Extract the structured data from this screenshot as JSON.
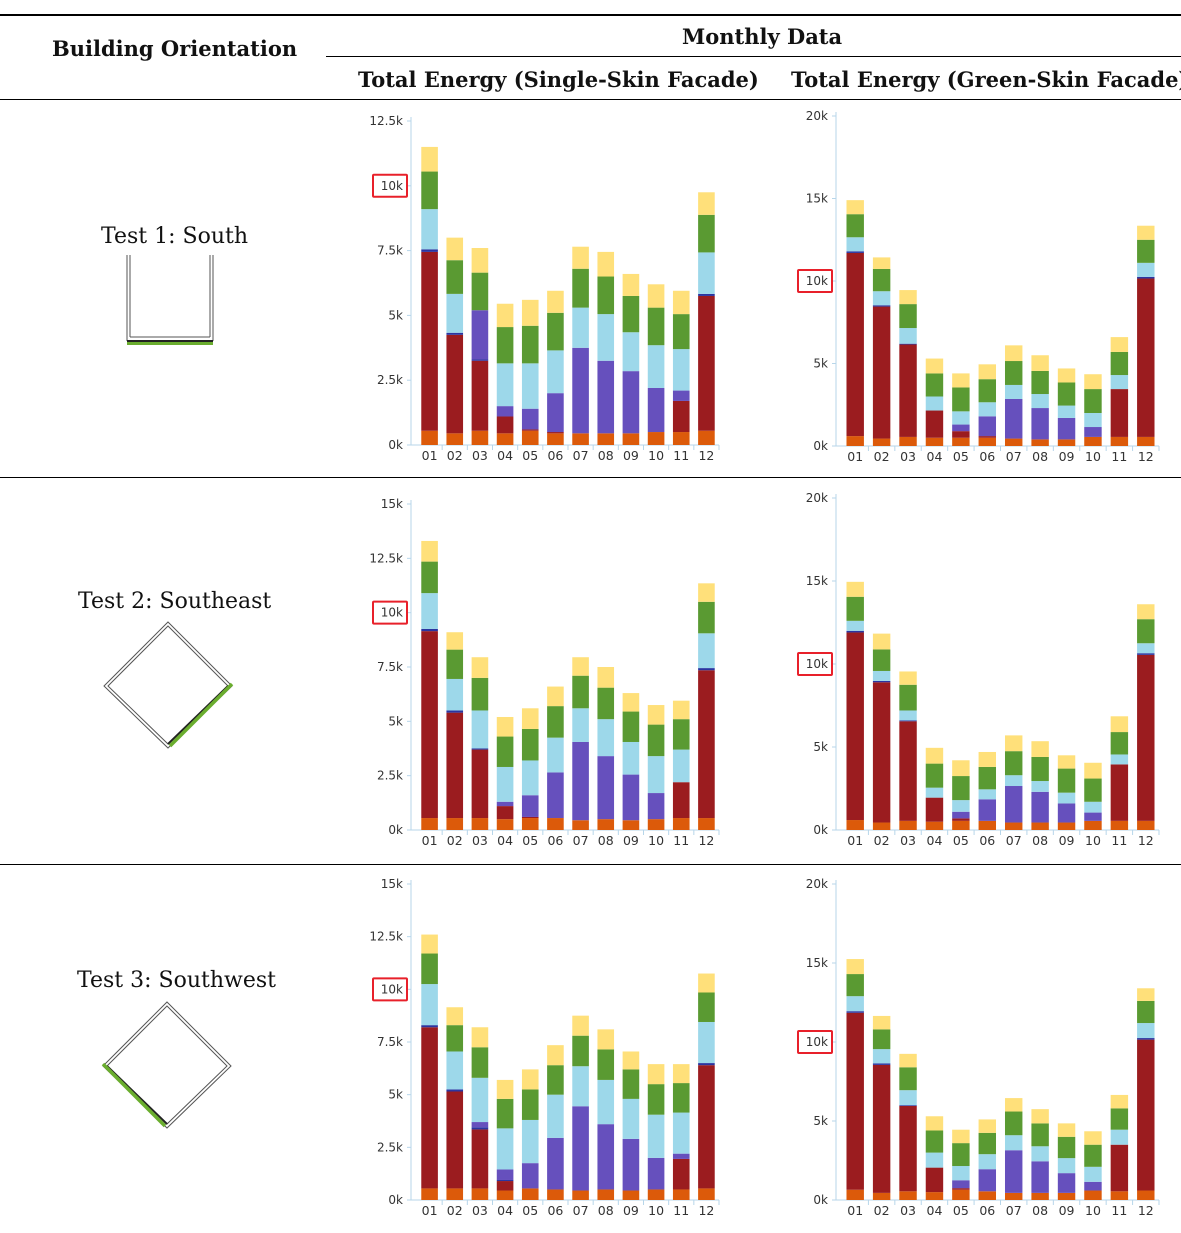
{
  "table": {
    "col_orientation": "Building Orientation",
    "col_group": "Monthly Data",
    "col_single": "Total Energy (Single-Skin Facade)",
    "col_green": "Total Energy (Green-Skin Facade)"
  },
  "rows": [
    {
      "label": "Test 1: South",
      "plan_orientation": "south"
    },
    {
      "label": "Test 2: Southeast",
      "plan_orientation": "southeast"
    },
    {
      "label": "Test 3: Southwest",
      "plan_orientation": "southwest"
    }
  ],
  "colors": {
    "orange": "#dc5a0a",
    "darkred": "#9b1c1f",
    "blue": "#2b35a0",
    "purple": "#6650bd",
    "lightblue": "#9dd8ea",
    "green": "#5a9a32",
    "yellow": "#ffe07a",
    "highlight_box": "#e8202a",
    "axis": "#b7d6ea",
    "plan_green": "#6aad2e"
  },
  "chart_data": [
    {
      "id": "south-single",
      "type": "bar",
      "stacked": true,
      "categories": [
        "01",
        "02",
        "03",
        "04",
        "05",
        "06",
        "07",
        "08",
        "09",
        "10",
        "11",
        "12"
      ],
      "ylim": [
        0,
        12500
      ],
      "yticks": [
        {
          "v": 0,
          "label": "0k"
        },
        {
          "v": 2500,
          "label": "2.5k"
        },
        {
          "v": 5000,
          "label": "5k"
        },
        {
          "v": 7500,
          "label": "7.5k"
        },
        {
          "v": 10000,
          "label": "10k"
        },
        {
          "v": 12500,
          "label": "12.5k"
        }
      ],
      "highlight_tick": "10k",
      "series": [
        {
          "color": "orange",
          "values": [
            550,
            450,
            550,
            450,
            550,
            450,
            450,
            450,
            450,
            500,
            500,
            550
          ]
        },
        {
          "color": "darkred",
          "values": [
            6900,
            3800,
            2700,
            650,
            50,
            50,
            0,
            0,
            0,
            0,
            1200,
            5200
          ]
        },
        {
          "color": "blue",
          "values": [
            100,
            80,
            50,
            0,
            0,
            0,
            0,
            0,
            0,
            0,
            0,
            80
          ]
        },
        {
          "color": "purple",
          "values": [
            0,
            0,
            1900,
            400,
            800,
            1500,
            3300,
            2800,
            2400,
            1700,
            400,
            0
          ]
        },
        {
          "color": "lightblue",
          "values": [
            1550,
            1500,
            0,
            1650,
            1750,
            1650,
            1550,
            1800,
            1500,
            1650,
            1600,
            1600
          ]
        },
        {
          "color": "green",
          "values": [
            1450,
            1300,
            1450,
            1400,
            1450,
            1450,
            1500,
            1450,
            1400,
            1450,
            1350,
            1450
          ]
        },
        {
          "color": "yellow",
          "values": [
            950,
            870,
            950,
            900,
            1000,
            850,
            850,
            950,
            850,
            900,
            900,
            870
          ]
        }
      ]
    },
    {
      "id": "south-green",
      "type": "bar",
      "stacked": true,
      "categories": [
        "01",
        "02",
        "03",
        "04",
        "05",
        "06",
        "07",
        "08",
        "09",
        "10",
        "11",
        "12"
      ],
      "ylim": [
        0,
        20000
      ],
      "yticks": [
        {
          "v": 0,
          "label": "0k"
        },
        {
          "v": 5000,
          "label": "5k"
        },
        {
          "v": 10000,
          "label": "10k"
        },
        {
          "v": 15000,
          "label": "15k"
        },
        {
          "v": 20000,
          "label": "20k"
        }
      ],
      "highlight_tick": "10k",
      "series": [
        {
          "color": "orange",
          "values": [
            600,
            450,
            550,
            500,
            500,
            500,
            450,
            400,
            400,
            550,
            550,
            550
          ]
        },
        {
          "color": "darkred",
          "values": [
            11100,
            8000,
            5600,
            1650,
            400,
            100,
            0,
            0,
            0,
            0,
            2900,
            9600
          ]
        },
        {
          "color": "blue",
          "values": [
            100,
            80,
            50,
            0,
            0,
            0,
            0,
            0,
            0,
            0,
            0,
            100
          ]
        },
        {
          "color": "purple",
          "values": [
            0,
            0,
            0,
            0,
            400,
            1200,
            2400,
            1900,
            1300,
            600,
            0,
            0
          ]
        },
        {
          "color": "lightblue",
          "values": [
            850,
            850,
            950,
            850,
            800,
            850,
            850,
            850,
            750,
            850,
            850,
            850
          ]
        },
        {
          "color": "green",
          "values": [
            1400,
            1350,
            1450,
            1400,
            1450,
            1400,
            1450,
            1400,
            1400,
            1450,
            1400,
            1400
          ]
        },
        {
          "color": "yellow",
          "values": [
            850,
            700,
            850,
            900,
            850,
            900,
            950,
            950,
            850,
            900,
            900,
            850
          ]
        }
      ]
    },
    {
      "id": "southeast-single",
      "type": "bar",
      "stacked": true,
      "categories": [
        "01",
        "02",
        "03",
        "04",
        "05",
        "06",
        "07",
        "08",
        "09",
        "10",
        "11",
        "12"
      ],
      "ylim": [
        0,
        15000
      ],
      "yticks": [
        {
          "v": 0,
          "label": "0k"
        },
        {
          "v": 2500,
          "label": "2.5k"
        },
        {
          "v": 5000,
          "label": "5k"
        },
        {
          "v": 7500,
          "label": "7.5k"
        },
        {
          "v": 10000,
          "label": "10k"
        },
        {
          "v": 12500,
          "label": "12.5k"
        },
        {
          "v": 15000,
          "label": "15k"
        }
      ],
      "highlight_tick": "10k",
      "series": [
        {
          "color": "orange",
          "values": [
            550,
            550,
            550,
            500,
            550,
            550,
            450,
            500,
            450,
            500,
            550,
            550
          ]
        },
        {
          "color": "darkred",
          "values": [
            8600,
            4850,
            3150,
            600,
            50,
            0,
            0,
            0,
            0,
            0,
            1650,
            6800
          ]
        },
        {
          "color": "blue",
          "values": [
            100,
            100,
            50,
            0,
            0,
            0,
            0,
            0,
            0,
            0,
            0,
            100
          ]
        },
        {
          "color": "purple",
          "values": [
            0,
            0,
            0,
            200,
            1000,
            2100,
            3600,
            2900,
            2100,
            1200,
            0,
            0
          ]
        },
        {
          "color": "lightblue",
          "values": [
            1650,
            1450,
            1750,
            1600,
            1600,
            1600,
            1550,
            1700,
            1500,
            1700,
            1500,
            1600
          ]
        },
        {
          "color": "green",
          "values": [
            1450,
            1350,
            1500,
            1400,
            1450,
            1450,
            1500,
            1450,
            1400,
            1450,
            1400,
            1450
          ]
        },
        {
          "color": "yellow",
          "values": [
            950,
            800,
            950,
            900,
            950,
            900,
            850,
            950,
            850,
            900,
            850,
            850
          ]
        }
      ]
    },
    {
      "id": "southeast-green",
      "type": "bar",
      "stacked": true,
      "categories": [
        "01",
        "02",
        "03",
        "04",
        "05",
        "06",
        "07",
        "08",
        "09",
        "10",
        "11",
        "12"
      ],
      "ylim": [
        0,
        20000
      ],
      "yticks": [
        {
          "v": 0,
          "label": "0k"
        },
        {
          "v": 5000,
          "label": "5k"
        },
        {
          "v": 10000,
          "label": "10k"
        },
        {
          "v": 15000,
          "label": "15k"
        },
        {
          "v": 20000,
          "label": "20k"
        }
      ],
      "highlight_tick": "10k",
      "series": [
        {
          "color": "orange",
          "values": [
            600,
            450,
            550,
            500,
            550,
            550,
            450,
            450,
            450,
            550,
            550,
            550
          ]
        },
        {
          "color": "darkred",
          "values": [
            11300,
            8450,
            6000,
            1450,
            150,
            0,
            0,
            0,
            0,
            0,
            3400,
            10000
          ]
        },
        {
          "color": "blue",
          "values": [
            100,
            80,
            50,
            0,
            0,
            0,
            0,
            0,
            0,
            0,
            0,
            100
          ]
        },
        {
          "color": "purple",
          "values": [
            0,
            0,
            0,
            0,
            400,
            1300,
            2200,
            1850,
            1150,
            500,
            0,
            0
          ]
        },
        {
          "color": "lightblue",
          "values": [
            600,
            600,
            600,
            600,
            700,
            600,
            650,
            650,
            650,
            650,
            600,
            600
          ]
        },
        {
          "color": "green",
          "values": [
            1450,
            1300,
            1550,
            1450,
            1450,
            1350,
            1450,
            1450,
            1450,
            1400,
            1350,
            1450
          ]
        },
        {
          "color": "yellow",
          "values": [
            900,
            950,
            800,
            950,
            950,
            900,
            950,
            950,
            800,
            950,
            950,
            900
          ]
        }
      ]
    },
    {
      "id": "southwest-single",
      "type": "bar",
      "stacked": true,
      "categories": [
        "01",
        "02",
        "03",
        "04",
        "05",
        "06",
        "07",
        "08",
        "09",
        "10",
        "11",
        "12"
      ],
      "ylim": [
        0,
        15000
      ],
      "yticks": [
        {
          "v": 0,
          "label": "0k"
        },
        {
          "v": 2500,
          "label": "2.5k"
        },
        {
          "v": 5000,
          "label": "5k"
        },
        {
          "v": 7500,
          "label": "7.5k"
        },
        {
          "v": 10000,
          "label": "10k"
        },
        {
          "v": 12500,
          "label": "12.5k"
        },
        {
          "v": 15000,
          "label": "15k"
        }
      ],
      "highlight_tick": "10k",
      "series": [
        {
          "color": "orange",
          "values": [
            550,
            550,
            550,
            450,
            550,
            500,
            450,
            500,
            450,
            500,
            500,
            550
          ]
        },
        {
          "color": "darkred",
          "values": [
            7650,
            4600,
            2800,
            450,
            0,
            0,
            0,
            0,
            0,
            0,
            1450,
            5850
          ]
        },
        {
          "color": "blue",
          "values": [
            100,
            100,
            100,
            50,
            0,
            0,
            0,
            0,
            0,
            0,
            0,
            100
          ]
        },
        {
          "color": "purple",
          "values": [
            0,
            0,
            250,
            500,
            1200,
            2450,
            4000,
            3100,
            2450,
            1500,
            250,
            0
          ]
        },
        {
          "color": "lightblue",
          "values": [
            1950,
            1800,
            2100,
            1950,
            2050,
            2050,
            1900,
            2100,
            1900,
            2050,
            1950,
            1950
          ]
        },
        {
          "color": "green",
          "values": [
            1450,
            1250,
            1450,
            1400,
            1450,
            1400,
            1450,
            1450,
            1400,
            1450,
            1400,
            1400
          ]
        },
        {
          "color": "yellow",
          "values": [
            900,
            850,
            950,
            900,
            950,
            950,
            950,
            950,
            850,
            950,
            900,
            900
          ]
        }
      ]
    },
    {
      "id": "southwest-green",
      "type": "bar",
      "stacked": true,
      "categories": [
        "01",
        "02",
        "03",
        "04",
        "05",
        "06",
        "07",
        "08",
        "09",
        "10",
        "11",
        "12"
      ],
      "ylim": [
        0,
        20000
      ],
      "yticks": [
        {
          "v": 0,
          "label": "0k"
        },
        {
          "v": 5000,
          "label": "5k"
        },
        {
          "v": 10000,
          "label": "10k"
        },
        {
          "v": 15000,
          "label": "15k"
        },
        {
          "v": 20000,
          "label": "20k"
        }
      ],
      "highlight_tick": "10k",
      "series": [
        {
          "color": "orange",
          "values": [
            650,
            450,
            550,
            500,
            650,
            550,
            450,
            450,
            450,
            600,
            550,
            600
          ]
        },
        {
          "color": "darkred",
          "values": [
            11200,
            8100,
            5400,
            1550,
            100,
            0,
            0,
            0,
            0,
            0,
            2950,
            9550
          ]
        },
        {
          "color": "blue",
          "values": [
            100,
            100,
            50,
            0,
            0,
            0,
            0,
            0,
            0,
            0,
            0,
            100
          ]
        },
        {
          "color": "purple",
          "values": [
            0,
            0,
            0,
            0,
            500,
            1400,
            2700,
            2000,
            1250,
            550,
            0,
            0
          ]
        },
        {
          "color": "lightblue",
          "values": [
            950,
            900,
            950,
            950,
            900,
            950,
            950,
            950,
            950,
            950,
            950,
            950
          ]
        },
        {
          "color": "green",
          "values": [
            1400,
            1250,
            1450,
            1400,
            1450,
            1350,
            1500,
            1450,
            1350,
            1400,
            1350,
            1400
          ]
        },
        {
          "color": "yellow",
          "values": [
            950,
            850,
            850,
            900,
            850,
            850,
            850,
            900,
            850,
            850,
            850,
            800
          ]
        }
      ]
    }
  ]
}
